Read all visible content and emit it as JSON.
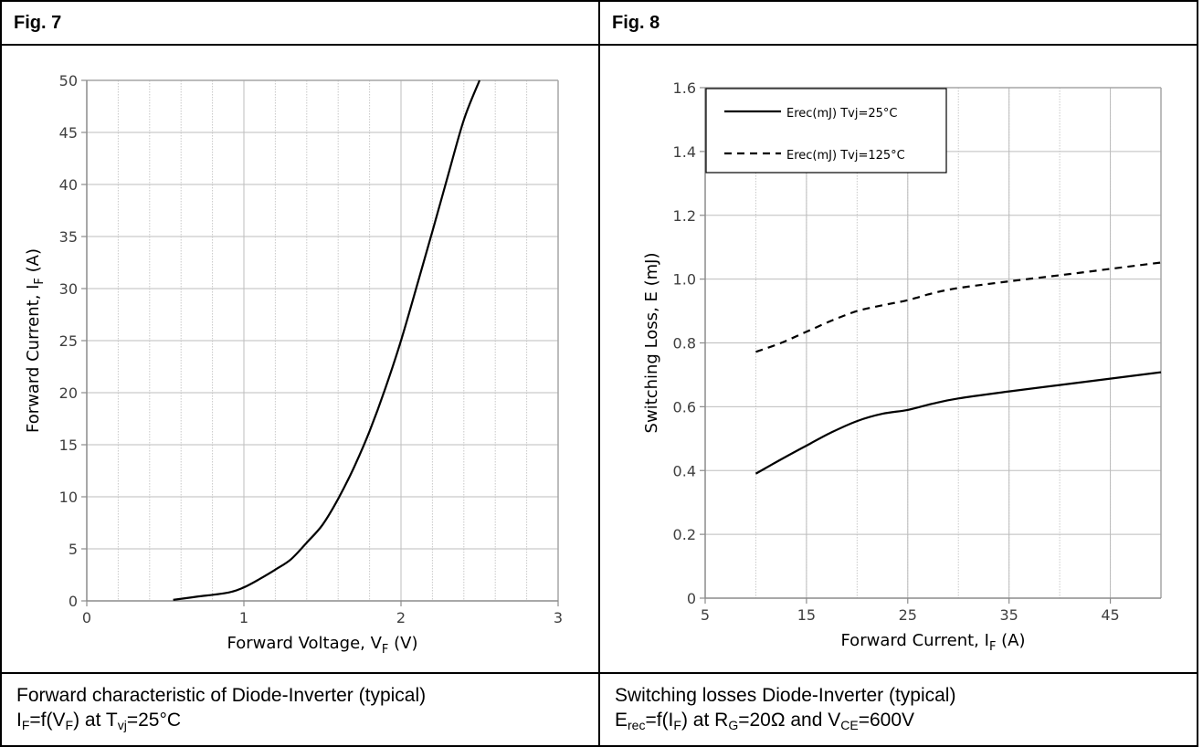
{
  "panels": [
    {
      "fig": "Fig. 7",
      "caption": {
        "line1": "Forward characteristic of Diode-Inverter (typical)",
        "line2": {
          "a": "I",
          "a_sub": "F",
          "b": "=f(V",
          "b_sub": "F",
          "c": ") at T",
          "c_sub": "vj",
          "d": "=25°C"
        }
      }
    },
    {
      "fig": "Fig. 8",
      "caption": {
        "line1": "Switching losses Diode-Inverter (typical)",
        "line2": {
          "a": "E",
          "a_sub": "rec",
          "b": "=f(I",
          "b_sub": "F",
          "c": ") at R",
          "c_sub": "G",
          "d": "=20Ω and V",
          "d_sub": "CE",
          "e": "=600V"
        }
      }
    }
  ],
  "chart_data": [
    {
      "type": "line",
      "xlabel": {
        "main": "Forward Voltage, V",
        "sub": "F",
        "tail": " (V)"
      },
      "ylabel": {
        "main": "Forward Current, I",
        "sub": "F",
        "tail": " (A)"
      },
      "xlim": [
        0,
        3
      ],
      "ylim": [
        0,
        50
      ],
      "xticks": [
        0,
        1,
        2,
        3
      ],
      "yticks": [
        0,
        5,
        10,
        15,
        20,
        25,
        30,
        35,
        40,
        45,
        50
      ],
      "minor_x_step": 0.2,
      "grid": true,
      "series": [
        {
          "style": "solid",
          "color": "#000000",
          "x": [
            0.55,
            0.7,
            0.9,
            1.0,
            1.1,
            1.2,
            1.3,
            1.4,
            1.5,
            1.6,
            1.7,
            1.8,
            1.9,
            2.0,
            2.1,
            2.2,
            2.3,
            2.4,
            2.5
          ],
          "y": [
            0.1,
            0.4,
            0.8,
            1.3,
            2.1,
            3.0,
            4.0,
            5.6,
            7.3,
            9.8,
            12.8,
            16.3,
            20.4,
            25.0,
            30.2,
            35.5,
            40.9,
            46.2,
            50.0
          ]
        }
      ]
    },
    {
      "type": "line",
      "xlabel": {
        "main": "Forward Current, I",
        "sub": "F",
        "tail": " (A)"
      },
      "ylabel": {
        "main": "Switching Loss, E (mJ)",
        "sub": "",
        "tail": ""
      },
      "xlim": [
        5,
        50
      ],
      "ylim": [
        0,
        1.6
      ],
      "xticks": [
        5,
        15,
        25,
        35,
        45
      ],
      "yticks": [
        0,
        0.2,
        0.4,
        0.6,
        0.8,
        1.0,
        1.2,
        1.4,
        1.6
      ],
      "ytick_labels": [
        "0",
        "0.2",
        "0.4",
        "0.6",
        "0.8",
        "1.0",
        "1.2",
        "1.4",
        "1.6"
      ],
      "minor_x_step": 5,
      "grid": true,
      "legend": "top-left",
      "series": [
        {
          "name": "Erec(mJ) Tvj=25°C",
          "style": "solid",
          "color": "#000000",
          "x": [
            10,
            12.5,
            15,
            17.5,
            20,
            22.5,
            25,
            27.5,
            30,
            35,
            40,
            45,
            50
          ],
          "y": [
            0.39,
            0.435,
            0.478,
            0.52,
            0.555,
            0.578,
            0.59,
            0.61,
            0.626,
            0.648,
            0.668,
            0.688,
            0.708
          ]
        },
        {
          "name": "Erec(mJ) Tvj=125°C",
          "style": "dashed",
          "color": "#000000",
          "x": [
            10,
            12.5,
            15,
            17.5,
            20,
            22.5,
            25,
            27.5,
            30,
            35,
            40,
            45,
            50
          ],
          "y": [
            0.772,
            0.8,
            0.835,
            0.87,
            0.9,
            0.918,
            0.934,
            0.956,
            0.972,
            0.993,
            1.012,
            1.032,
            1.052
          ]
        }
      ]
    }
  ]
}
